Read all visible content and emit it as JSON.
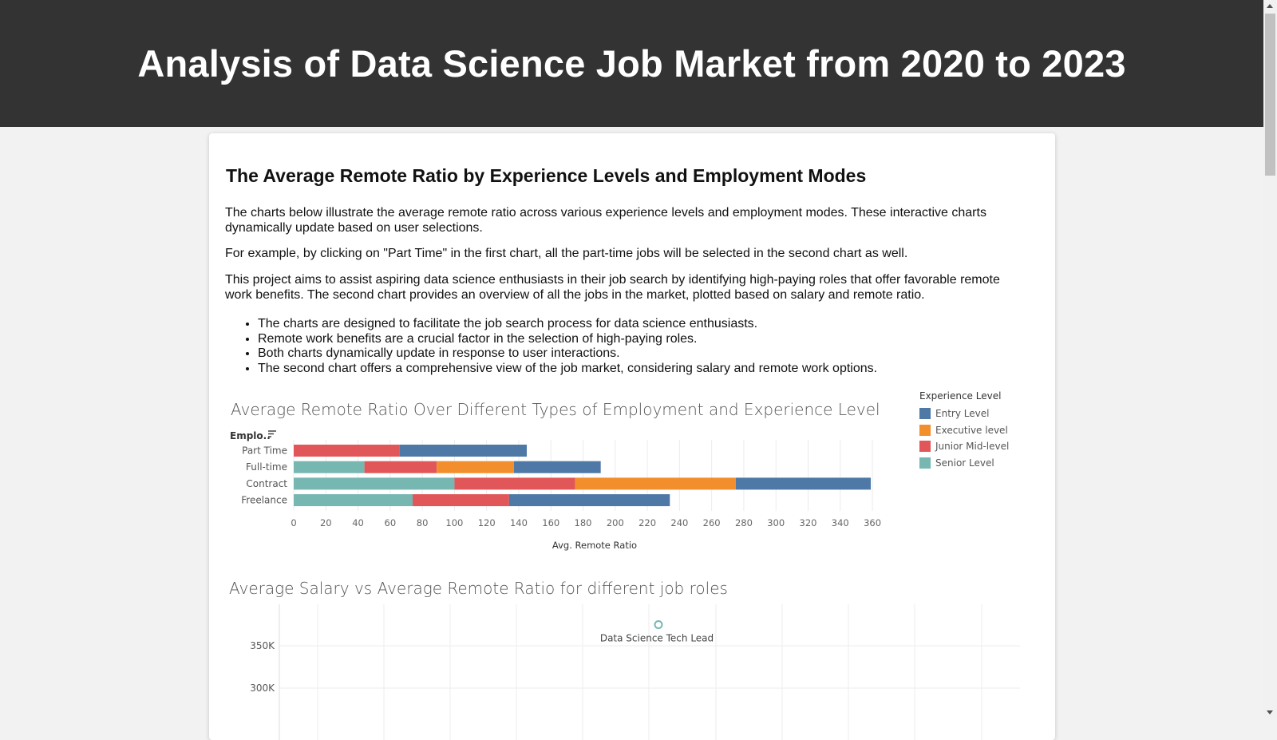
{
  "page": {
    "title": "Analysis of Data Science Job Market from 2020 to 2023"
  },
  "content": {
    "heading": "The Average Remote Ratio by Experience Levels and Employment Modes",
    "paragraphs": [
      "The charts below illustrate the average remote ratio across various experience levels and employment modes. These interactive charts dynamically update based on user selections.",
      "For example, by clicking on \"Part Time\" in the first chart, all the part-time jobs will be selected in the second chart as well.",
      "This project aims to assist aspiring data science enthusiasts in their job search by identifying high-paying roles that offer favorable remote work benefits. The second chart provides an overview of all the jobs in the market, plotted based on salary and remote ratio."
    ],
    "bullets": [
      "The charts are designed to facilitate the job search process for data science enthusiasts.",
      "Remote work benefits are a crucial factor in the selection of high-paying roles.",
      "Both charts dynamically update in response to user interactions.",
      "The second chart offers a comprehensive view of the job market, considering salary and remote work options."
    ]
  },
  "chart_data": [
    {
      "type": "bar",
      "orientation": "horizontal",
      "stacked": true,
      "title": "Average Remote Ratio Over Different Types of Employment and Experience Level",
      "row_header": "Emplo..",
      "xlabel": "Avg. Remote Ratio",
      "xlim": [
        0,
        370
      ],
      "x_ticks": [
        0,
        20,
        40,
        60,
        80,
        100,
        120,
        140,
        160,
        180,
        200,
        220,
        240,
        260,
        280,
        300,
        320,
        340,
        360
      ],
      "grid": true,
      "legend_title": "Experience Level",
      "legend_position": "right",
      "categories": [
        "Part Time",
        "Full-time",
        "Contract",
        "Freelance"
      ],
      "series": [
        {
          "name": "Senior Level",
          "color": "#76b7b2",
          "values": [
            0,
            44,
            100,
            74
          ]
        },
        {
          "name": "Junior Mid-level",
          "color": "#e15759",
          "values": [
            66,
            45,
            75,
            60
          ]
        },
        {
          "name": "Executive level",
          "color": "#f28e2b",
          "values": [
            0,
            48,
            100,
            0
          ]
        },
        {
          "name": "Entry Level",
          "color": "#4e79a7",
          "values": [
            79,
            54,
            84,
            100
          ]
        }
      ],
      "legend_order": [
        "Entry Level",
        "Executive level",
        "Junior Mid-level",
        "Senior Level"
      ]
    },
    {
      "type": "scatter",
      "title": "Average Salary vs Average Remote Ratio for different job roles",
      "y_ticks": [
        "350K",
        "300K"
      ],
      "grid": true,
      "points": [
        {
          "label": "Data Science Tech Lead",
          "y": 375000,
          "color": "#76b7b2"
        }
      ]
    }
  ]
}
